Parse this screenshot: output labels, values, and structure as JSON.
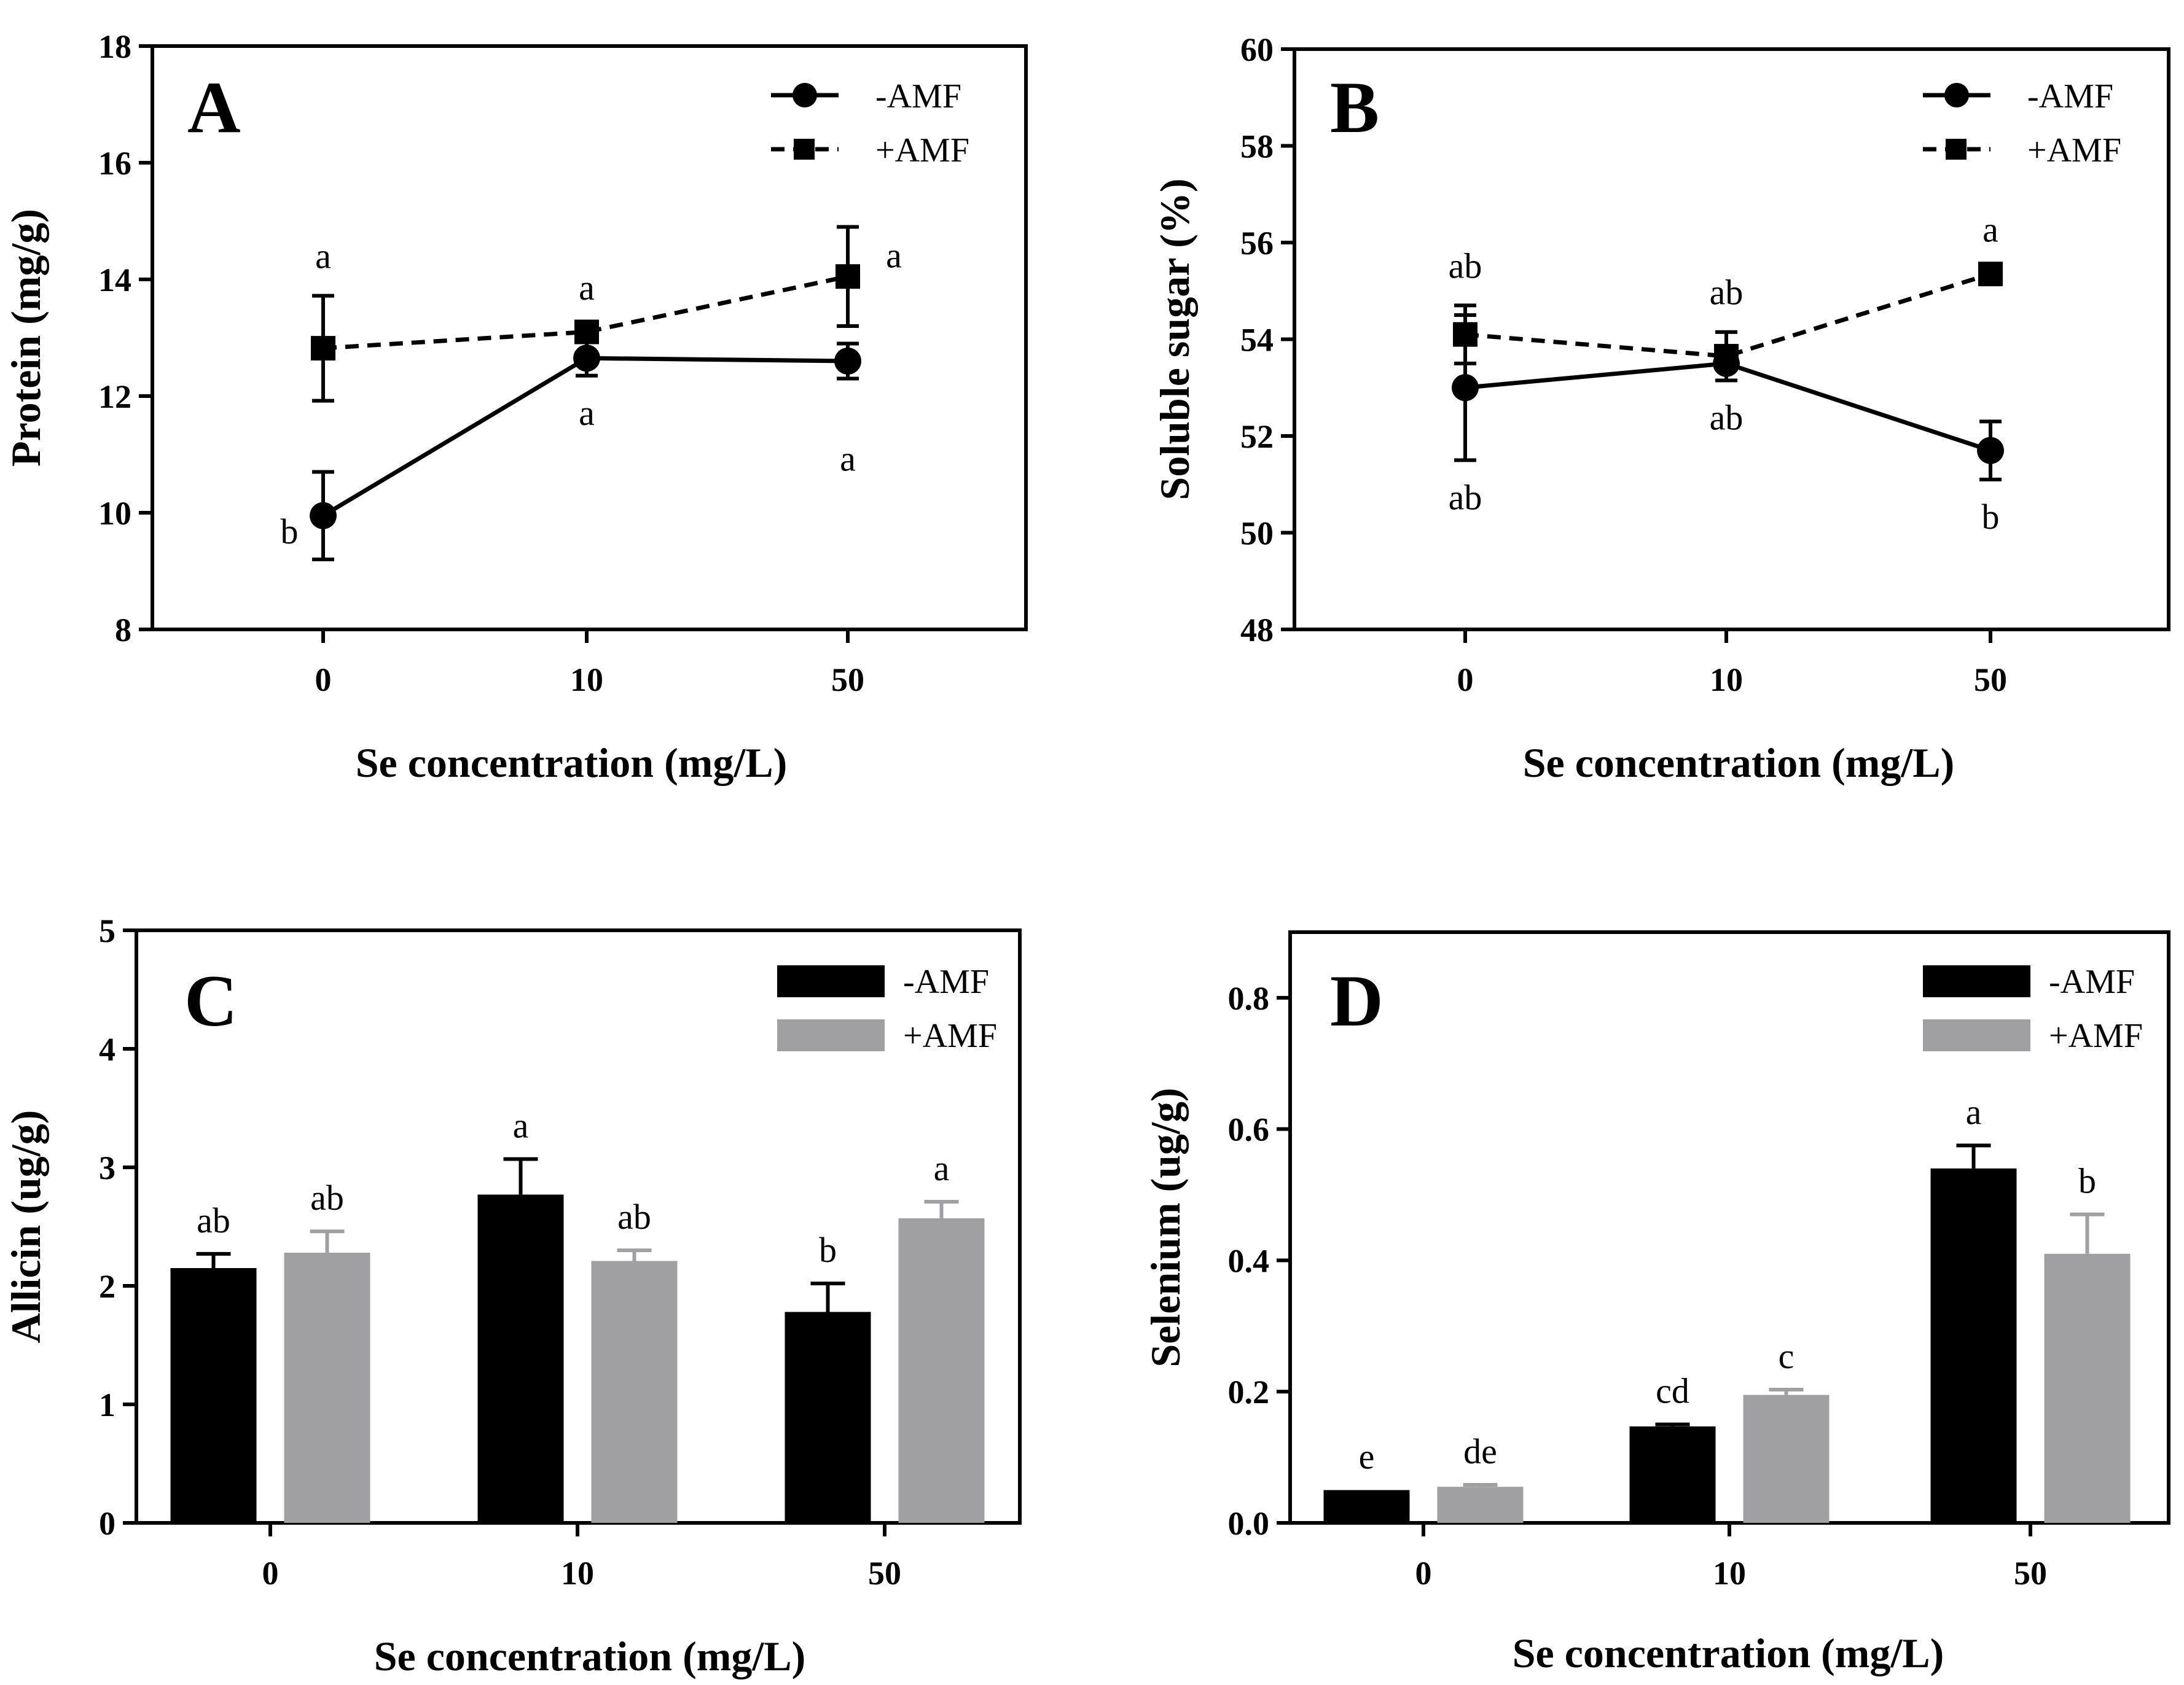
{
  "chart_data": [
    {
      "panel": "A",
      "type": "line",
      "title": "",
      "xlabel": "Se concentration  (mg/L)",
      "ylabel": "Protein (mg/g)",
      "categories": [
        "0",
        "10",
        "50"
      ],
      "ylim": [
        8,
        18
      ],
      "yticks": [
        8,
        10,
        12,
        14,
        16,
        18
      ],
      "legend_position": "top-right",
      "series": [
        {
          "name": "-AMF",
          "style": "solid-circle",
          "values": [
            9.95,
            12.65,
            12.6
          ],
          "errors": [
            0.75,
            0.3,
            0.3
          ],
          "letters": [
            "b",
            "a",
            "a"
          ]
        },
        {
          "name": "+AMF",
          "style": "dashed-square",
          "values": [
            12.82,
            13.1,
            14.05
          ],
          "errors": [
            0.9,
            0.08,
            0.85
          ],
          "letters": [
            "a",
            "a",
            "a"
          ]
        }
      ]
    },
    {
      "panel": "B",
      "type": "line",
      "title": "",
      "xlabel": "Se concentration  (mg/L)",
      "ylabel": "Soluble sugar (%)",
      "categories": [
        "0",
        "10",
        "50"
      ],
      "ylim": [
        48,
        60
      ],
      "yticks": [
        48,
        50,
        52,
        54,
        56,
        58,
        60
      ],
      "legend_position": "top-right",
      "series": [
        {
          "name": "-AMF",
          "style": "solid-circle",
          "values": [
            53.0,
            53.5,
            51.7
          ],
          "errors": [
            1.5,
            0.35,
            0.6
          ],
          "letters": [
            "ab",
            "ab",
            "b"
          ]
        },
        {
          "name": "+AMF",
          "style": "dashed-square",
          "values": [
            54.1,
            53.65,
            55.35
          ],
          "errors": [
            0.6,
            0.5,
            0.1
          ],
          "letters": [
            "ab",
            "ab",
            "a"
          ]
        }
      ]
    },
    {
      "panel": "C",
      "type": "bar",
      "title": "",
      "xlabel": "Se concentration  (mg/L)",
      "ylabel": "Allicin (ug/g)",
      "categories": [
        "0",
        "10",
        "50"
      ],
      "ylim": [
        0,
        5
      ],
      "yticks": [
        0,
        1,
        2,
        3,
        4,
        5
      ],
      "legend_position": "top-right",
      "series": [
        {
          "name": "-AMF",
          "color": "#000000",
          "values": [
            2.15,
            2.77,
            1.78
          ],
          "errors": [
            0.12,
            0.3,
            0.24
          ],
          "letters": [
            "ab",
            "a",
            "b"
          ]
        },
        {
          "name": "+AMF",
          "color": "#a0a0a2",
          "values": [
            2.28,
            2.21,
            2.57
          ],
          "errors": [
            0.18,
            0.09,
            0.14
          ],
          "letters": [
            "ab",
            "ab",
            "a"
          ]
        }
      ]
    },
    {
      "panel": "D",
      "type": "bar",
      "title": "",
      "xlabel": "Se concentration  (mg/L)",
      "ylabel": "Selenium (ug/g)",
      "categories": [
        "0",
        "10",
        "50"
      ],
      "ylim": [
        0,
        0.9
      ],
      "yticks": [
        0.0,
        0.2,
        0.4,
        0.6,
        0.8
      ],
      "ytick_labels": [
        "0.0",
        "0.2",
        "0.4",
        "0.6",
        "0.8"
      ],
      "legend_position": "top-right",
      "series": [
        {
          "name": "-AMF",
          "color": "#000000",
          "values": [
            0.05,
            0.147,
            0.54
          ],
          "errors": [
            0.0,
            0.003,
            0.035
          ],
          "letters": [
            "e",
            "cd",
            "a"
          ]
        },
        {
          "name": "+AMF",
          "color": "#a0a0a2",
          "values": [
            0.055,
            0.195,
            0.41
          ],
          "errors": [
            0.003,
            0.008,
            0.06
          ],
          "letters": [
            "de",
            "c",
            "b"
          ]
        }
      ]
    }
  ]
}
